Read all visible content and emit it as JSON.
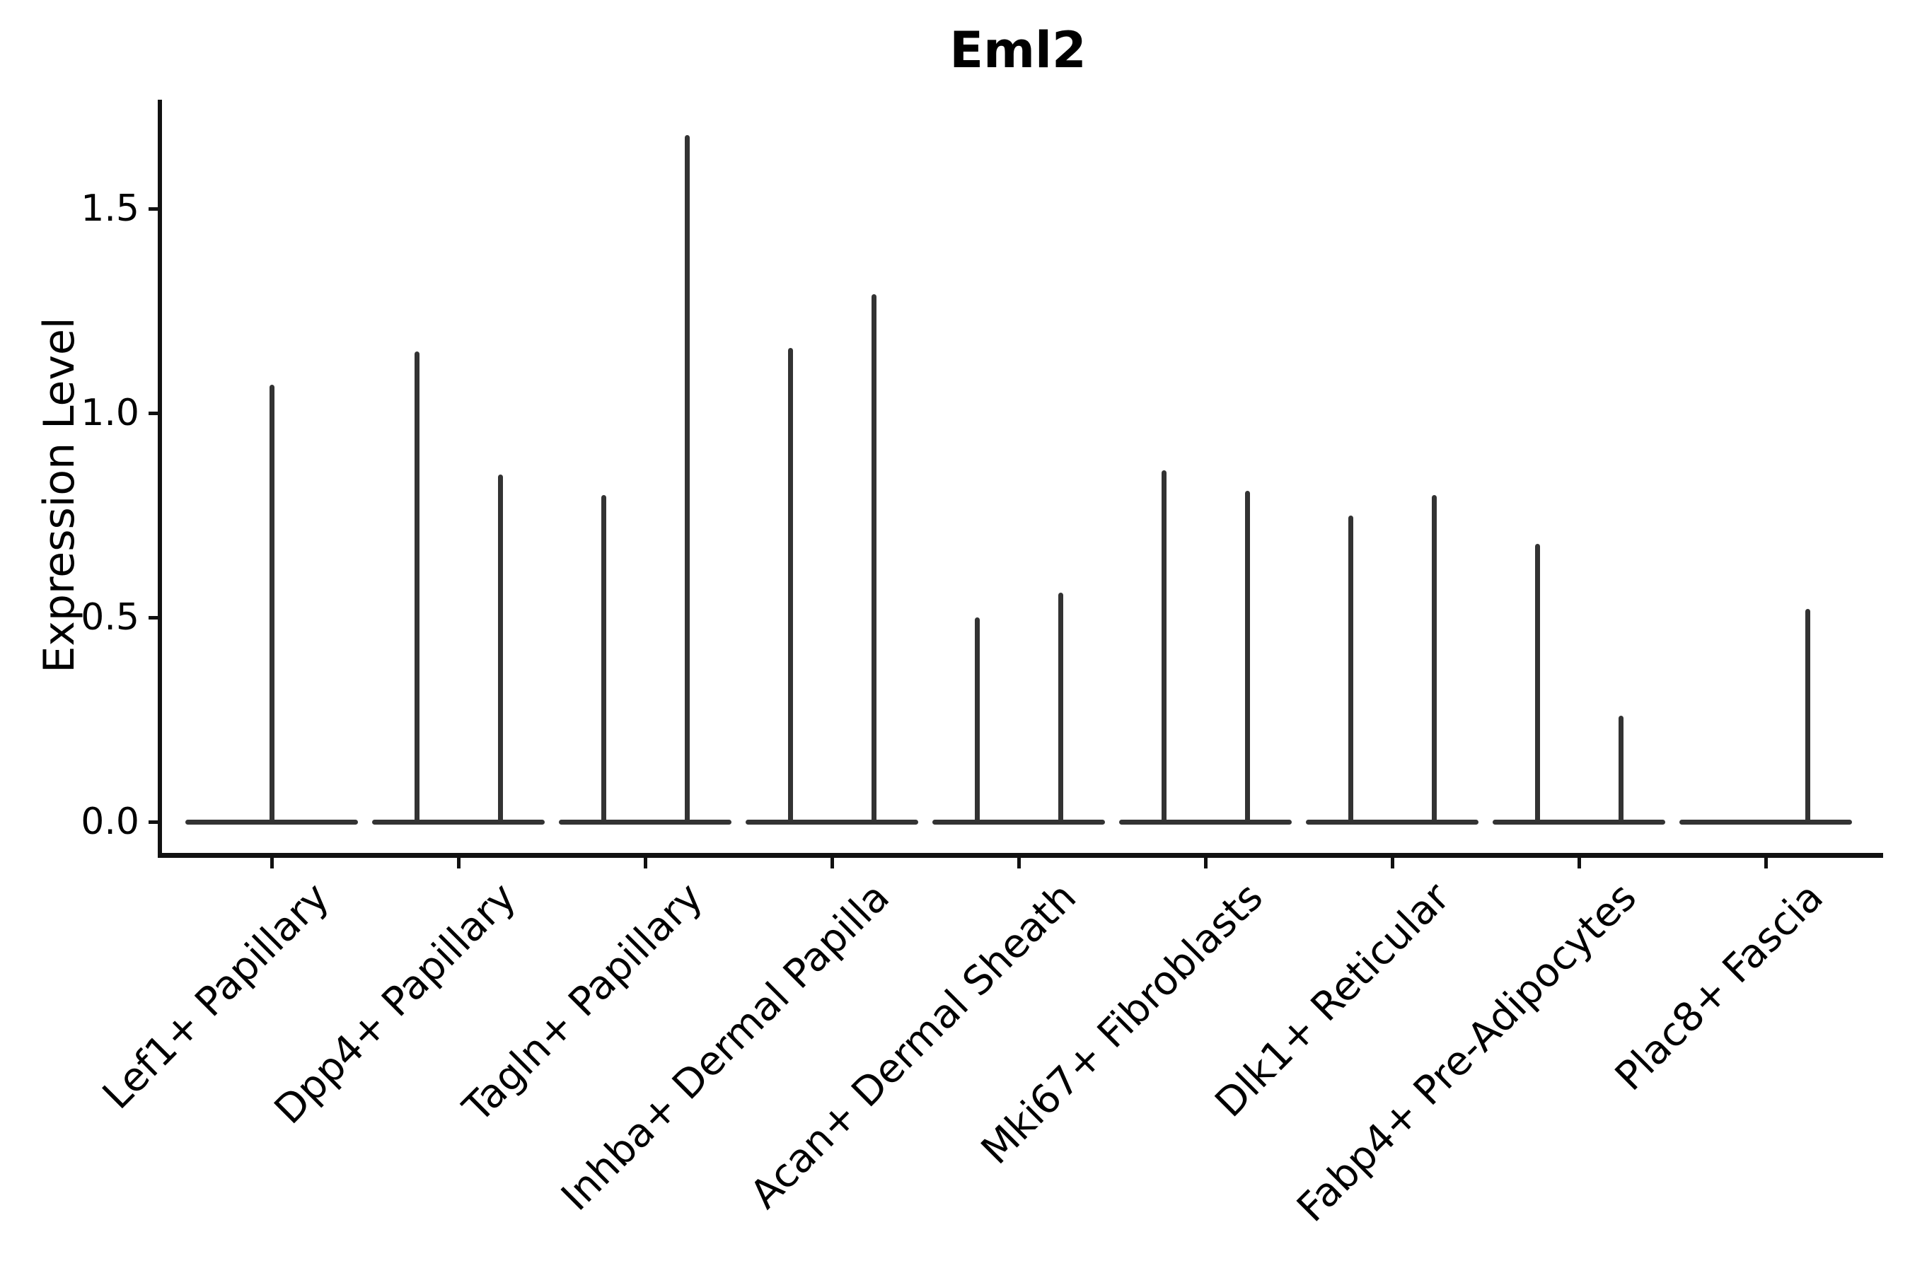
{
  "title": "Eml2",
  "ylabel": "Expression Level",
  "colors": {
    "violin_line": "#333333",
    "axis_spine": "#111111",
    "text": "#000000",
    "background": "#ffffff"
  },
  "chart_data": {
    "type": "violin",
    "title": "Eml2",
    "xlabel": "",
    "ylabel": "Expression Level",
    "ylim": [
      -0.08,
      1.77
    ],
    "yticks": [
      0.0,
      0.5,
      1.0,
      1.5
    ],
    "yticklabels": [
      "0.0",
      "0.5",
      "1.0",
      "1.5"
    ],
    "grid": false,
    "legend": "none",
    "xticklabel_rotation": 45,
    "shape_note": "Each violin is collapsed: a wide flat base at expression 0 plus a thin vertical spike rising to the max expression; categories with two groups show two spikes (left/right), categories with one group show a single spike.",
    "categories": [
      "Lef1+ Papillary",
      "Dpp4+ Papillary",
      "Tagln+ Papillary",
      "Inhba+ Dermal Papilla",
      "Acan+ Dermal Sheath",
      "Mki67+ Fibroblasts",
      "Dlk1+ Reticular",
      "Fabp4+ Pre-Adipocytes",
      "Plac8+ Fascia"
    ],
    "series": [
      {
        "category": "Lef1+ Papillary",
        "violins": [
          {
            "position": "center",
            "max": 1.07
          }
        ]
      },
      {
        "category": "Dpp4+ Papillary",
        "violins": [
          {
            "position": "left",
            "max": 1.15
          },
          {
            "position": "right",
            "max": 0.85
          }
        ]
      },
      {
        "category": "Tagln+ Papillary",
        "violins": [
          {
            "position": "left",
            "max": 0.8
          },
          {
            "position": "right",
            "max": 1.68
          }
        ]
      },
      {
        "category": "Inhba+ Dermal Papilla",
        "violins": [
          {
            "position": "left",
            "max": 1.16
          },
          {
            "position": "right",
            "max": 1.29
          }
        ]
      },
      {
        "category": "Acan+ Dermal Sheath",
        "violins": [
          {
            "position": "left",
            "max": 0.5
          },
          {
            "position": "right",
            "max": 0.56
          }
        ]
      },
      {
        "category": "Mki67+ Fibroblasts",
        "violins": [
          {
            "position": "left",
            "max": 0.86
          },
          {
            "position": "right",
            "max": 0.81
          }
        ]
      },
      {
        "category": "Dlk1+ Reticular",
        "violins": [
          {
            "position": "left",
            "max": 0.75
          },
          {
            "position": "right",
            "max": 0.8
          }
        ]
      },
      {
        "category": "Fabp4+ Pre-Adipocytes",
        "violins": [
          {
            "position": "left",
            "max": 0.68
          },
          {
            "position": "right",
            "max": 0.26
          }
        ]
      },
      {
        "category": "Plac8+ Fascia",
        "violins": [
          {
            "position": "right",
            "max": 0.52
          }
        ]
      }
    ]
  }
}
